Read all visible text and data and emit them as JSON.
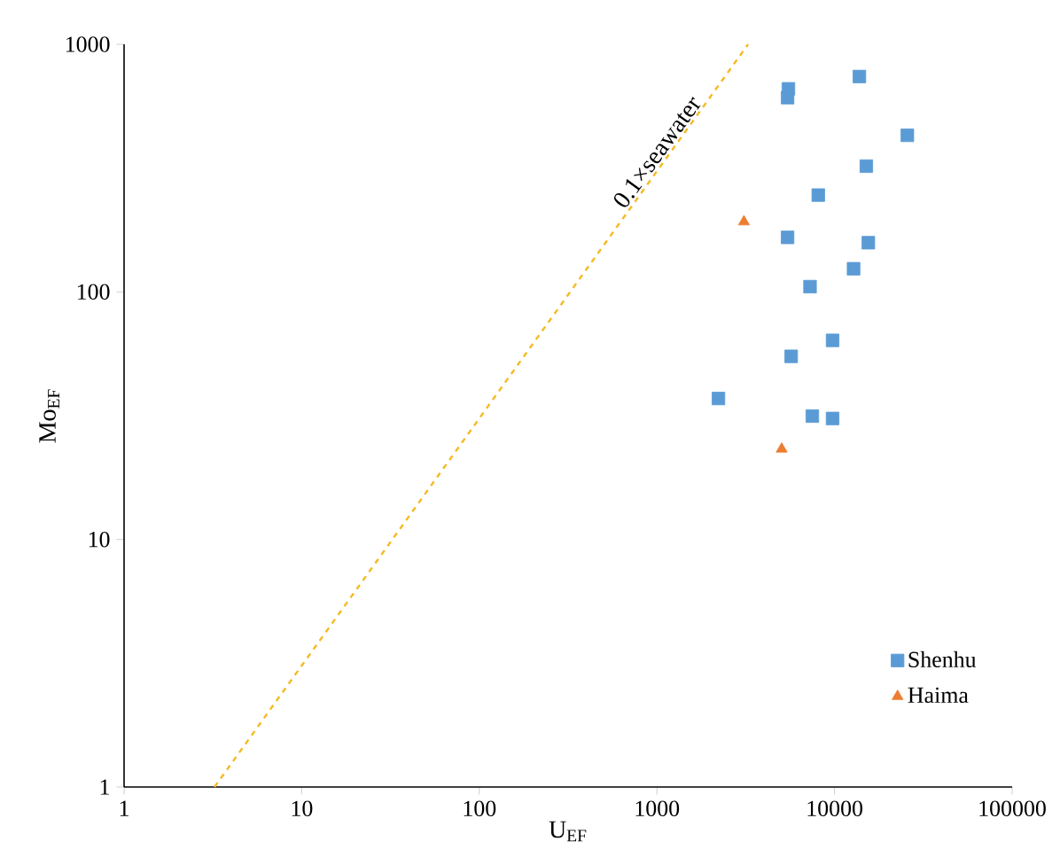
{
  "chart_data": {
    "type": "scatter",
    "xlabel": "U$_{EF}$",
    "ylabel": "Mo$_{EF}$",
    "log": "xy",
    "xlim": [
      1,
      100000
    ],
    "ylim": [
      1,
      1000
    ],
    "xticks": [
      1,
      10,
      100,
      1000,
      10000,
      100000
    ],
    "yticks": [
      1,
      10,
      100,
      1000
    ],
    "grid": false,
    "legend": "bottom right",
    "series": [
      {
        "name": "Shenhu",
        "color": "#5b9bd5",
        "marker": "square",
        "x": [
          5500,
          5440,
          13800,
          25700,
          15100,
          8100,
          5440,
          15500,
          12800,
          7280,
          9750,
          5700,
          2220,
          7500,
          9750
        ],
        "values": [
          661,
          609,
          741,
          429,
          322,
          246,
          166,
          158,
          124,
          105,
          63.7,
          54.9,
          37.1,
          31.5,
          30.8
        ]
      },
      {
        "name": "Haima",
        "color": "#ed7d31",
        "marker": "triangle",
        "x": [
          3090,
          5040
        ],
        "values": [
          192,
          23.2
        ]
      },
      {
        "type": "line",
        "color": "#f5b921",
        "line_style": "dashed",
        "marker": "none",
        "x": [
          3.23,
          3260
        ],
        "values": [
          1,
          1000
        ]
      }
    ],
    "annotations": [
      "0.1×seawater"
    ]
  }
}
